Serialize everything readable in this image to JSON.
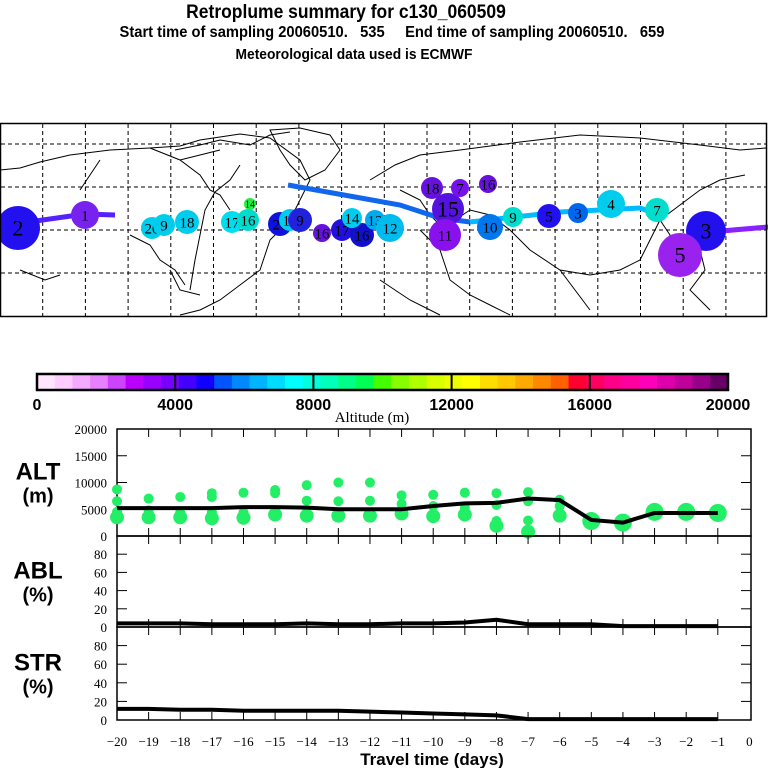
{
  "header": {
    "title": "Retroplume summary for c130_060509",
    "sampling_line": "Start time of sampling 20060510.   535     End time of sampling 20060510.   659",
    "met_line": "Meteorological data used is ECMWF"
  },
  "colorbar": {
    "label": "Altitude (m)",
    "tick_labels": [
      "0",
      "4000",
      "8000",
      "12000",
      "16000",
      "20000"
    ],
    "range": [
      0,
      20000
    ],
    "colors": [
      "#ffe6ff",
      "#ffccff",
      "#f5aaff",
      "#e680ff",
      "#cc44ff",
      "#bb00ff",
      "#9900ff",
      "#7700ff",
      "#4400ff",
      "#1100ff",
      "#0055ff",
      "#0088ff",
      "#00b4ff",
      "#00dcff",
      "#00ffff",
      "#00ffdd",
      "#00ffbb",
      "#00ff88",
      "#00ff55",
      "#44ff00",
      "#88ff00",
      "#b0ff00",
      "#d8ff00",
      "#eeff00",
      "#ffff00",
      "#ffdd00",
      "#ffc800",
      "#ffaa00",
      "#ff8800",
      "#ff6000",
      "#ff0030",
      "#ff0060",
      "#ff0088",
      "#ff00a0",
      "#ff00b8",
      "#dd00aa",
      "#c0009a",
      "#99008a",
      "#660066"
    ]
  },
  "map": {
    "track_colors": {
      "west_track": "#5522ff",
      "north_atlantic_track": "#1166ee",
      "asia_track": "#00bbff",
      "pacific_track": "#8822ff"
    },
    "plume_labels": [
      {
        "text": "2",
        "color": "#2211ee",
        "size": "large"
      },
      {
        "text": "1",
        "color": "#7722ee",
        "size": "medium"
      },
      {
        "text": "20",
        "color": "#00ccee",
        "size": "medium"
      },
      {
        "text": "9",
        "color": "#00ccee",
        "size": "medium"
      },
      {
        "text": "18",
        "color": "#00ccee",
        "size": "medium"
      },
      {
        "text": "17",
        "color": "#00ddee",
        "size": "medium"
      },
      {
        "text": "16",
        "color": "#00ddcc",
        "size": "medium"
      },
      {
        "text": "14",
        "color": "#22ee44",
        "size": "small"
      },
      {
        "text": "20",
        "color": "#1111dd",
        "size": "medium"
      },
      {
        "text": "15",
        "color": "#00ccee",
        "size": "medium"
      },
      {
        "text": "9",
        "color": "#2222dd",
        "size": "medium"
      },
      {
        "text": "16",
        "color": "#6611dd",
        "size": "medium"
      },
      {
        "text": "17",
        "color": "#2211dd",
        "size": "medium"
      },
      {
        "text": "16",
        "color": "#1111cc",
        "size": "medium"
      },
      {
        "text": "14",
        "color": "#00ccee",
        "size": "medium"
      },
      {
        "text": "13",
        "color": "#00aaee",
        "size": "medium"
      },
      {
        "text": "12",
        "color": "#00bbee",
        "size": "medium"
      },
      {
        "text": "15",
        "color": "#5511dd",
        "size": "large"
      },
      {
        "text": "18",
        "color": "#6611dd",
        "size": "medium"
      },
      {
        "text": "7",
        "color": "#7711ee",
        "size": "medium"
      },
      {
        "text": "16",
        "color": "#6611dd",
        "size": "medium"
      },
      {
        "text": "11",
        "color": "#8811ee",
        "size": "medium"
      },
      {
        "text": "10",
        "color": "#0077ee",
        "size": "medium"
      },
      {
        "text": "9",
        "color": "#00ddcc",
        "size": "medium"
      },
      {
        "text": "5",
        "color": "#2211ee",
        "size": "medium"
      },
      {
        "text": "3",
        "color": "#0066ee",
        "size": "medium"
      },
      {
        "text": "4",
        "color": "#00ccee",
        "size": "medium"
      },
      {
        "text": "7",
        "color": "#00ddcc",
        "size": "medium"
      },
      {
        "text": "3",
        "color": "#2211ee",
        "size": "large"
      },
      {
        "text": "5",
        "color": "#9922ee",
        "size": "large"
      }
    ]
  },
  "chart_data": [
    {
      "type": "line",
      "panel": "ALT",
      "ylabel_line1": "ALT",
      "ylabel_line2": "(m)",
      "ylim": [
        0,
        20000
      ],
      "yticks": [
        "0",
        "5000",
        "10000",
        "15000",
        "20000"
      ],
      "x": [
        -20,
        -19,
        -18,
        -17,
        -16,
        -15,
        -14,
        -13,
        -12,
        -11,
        -10,
        -9,
        -8,
        -7,
        -6,
        -5,
        -4,
        -3,
        -2,
        -1
      ],
      "series": [
        {
          "name": "mean altitude",
          "values": [
            5200,
            5200,
            5200,
            5200,
            5400,
            5400,
            5300,
            5000,
            5000,
            5000,
            5600,
            6100,
            6200,
            7000,
            6700,
            3000,
            2500,
            4300,
            4300,
            4300
          ]
        }
      ],
      "scatter_color": "#22ee66",
      "scatter": [
        {
          "x": -20,
          "y": [
            8700,
            6500,
            4500,
            3500
          ]
        },
        {
          "x": -19,
          "y": [
            7000,
            4800,
            3500
          ]
        },
        {
          "x": -18,
          "y": [
            7300,
            4400,
            3500
          ]
        },
        {
          "x": -17,
          "y": [
            8000,
            7300,
            4500,
            3300
          ]
        },
        {
          "x": -16,
          "y": [
            8100,
            4400,
            3400
          ]
        },
        {
          "x": -15,
          "y": [
            8600,
            8000,
            4000
          ]
        },
        {
          "x": -14,
          "y": [
            9500,
            6600,
            3800
          ]
        },
        {
          "x": -13,
          "y": [
            10000,
            6500,
            3800
          ]
        },
        {
          "x": -12,
          "y": [
            10000,
            6600,
            3800
          ]
        },
        {
          "x": -11,
          "y": [
            7600,
            6000,
            4200
          ]
        },
        {
          "x": -10,
          "y": [
            7700,
            5600,
            3700
          ]
        },
        {
          "x": -9,
          "y": [
            8100,
            5300,
            4000
          ]
        },
        {
          "x": -8,
          "y": [
            8000,
            5800,
            2800,
            1900
          ]
        },
        {
          "x": -7,
          "y": [
            8200,
            6500,
            2900,
            800
          ]
        },
        {
          "x": -6,
          "y": [
            6800,
            5600,
            3800
          ]
        },
        {
          "x": -5,
          "y": [
            2800
          ]
        },
        {
          "x": -4,
          "y": [
            2500
          ]
        },
        {
          "x": -3,
          "y": [
            4500
          ]
        },
        {
          "x": -2,
          "y": [
            4500
          ]
        },
        {
          "x": -1,
          "y": [
            4300
          ]
        }
      ]
    },
    {
      "type": "line",
      "panel": "ABL",
      "ylabel_line1": "ABL",
      "ylabel_line2": "(%)",
      "ylim": [
        0,
        100
      ],
      "yticks": [
        "0",
        "20",
        "40",
        "60",
        "80"
      ],
      "x": [
        -20,
        -19,
        -18,
        -17,
        -16,
        -15,
        -14,
        -13,
        -12,
        -11,
        -10,
        -9,
        -8,
        -7,
        -6,
        -5,
        -4,
        -3,
        -2,
        -1
      ],
      "series": [
        {
          "name": "ABL fraction",
          "values": [
            4,
            4,
            4,
            3,
            3,
            3,
            4,
            3,
            3,
            4,
            4,
            5,
            8,
            3,
            3,
            3,
            1,
            1,
            1,
            1
          ]
        }
      ]
    },
    {
      "type": "line",
      "panel": "STR",
      "ylabel_line1": "STR",
      "ylabel_line2": "(%)",
      "ylim": [
        0,
        100
      ],
      "yticks": [
        "0",
        "20",
        "40",
        "60",
        "80"
      ],
      "x": [
        -20,
        -19,
        -18,
        -17,
        -16,
        -15,
        -14,
        -13,
        -12,
        -11,
        -10,
        -9,
        -8,
        -7,
        -6,
        -5,
        -4,
        -3,
        -2,
        -1
      ],
      "series": [
        {
          "name": "stratospheric fraction",
          "values": [
            12,
            12,
            11,
            11,
            10,
            10,
            10,
            10,
            9,
            8,
            7,
            6,
            5,
            1,
            1,
            1,
            1,
            1,
            1,
            1
          ]
        }
      ],
      "xlabel": "Travel time (days)",
      "xticks": [
        "−20",
        "−19",
        "−18",
        "−17",
        "−16",
        "−15",
        "−14",
        "−13",
        "−12",
        "−11",
        "−10",
        "−9",
        "−8",
        "−7",
        "−6",
        "−5",
        "−4",
        "−3",
        "−2",
        "−1",
        "0"
      ],
      "xlim": [
        -20,
        0
      ]
    }
  ]
}
